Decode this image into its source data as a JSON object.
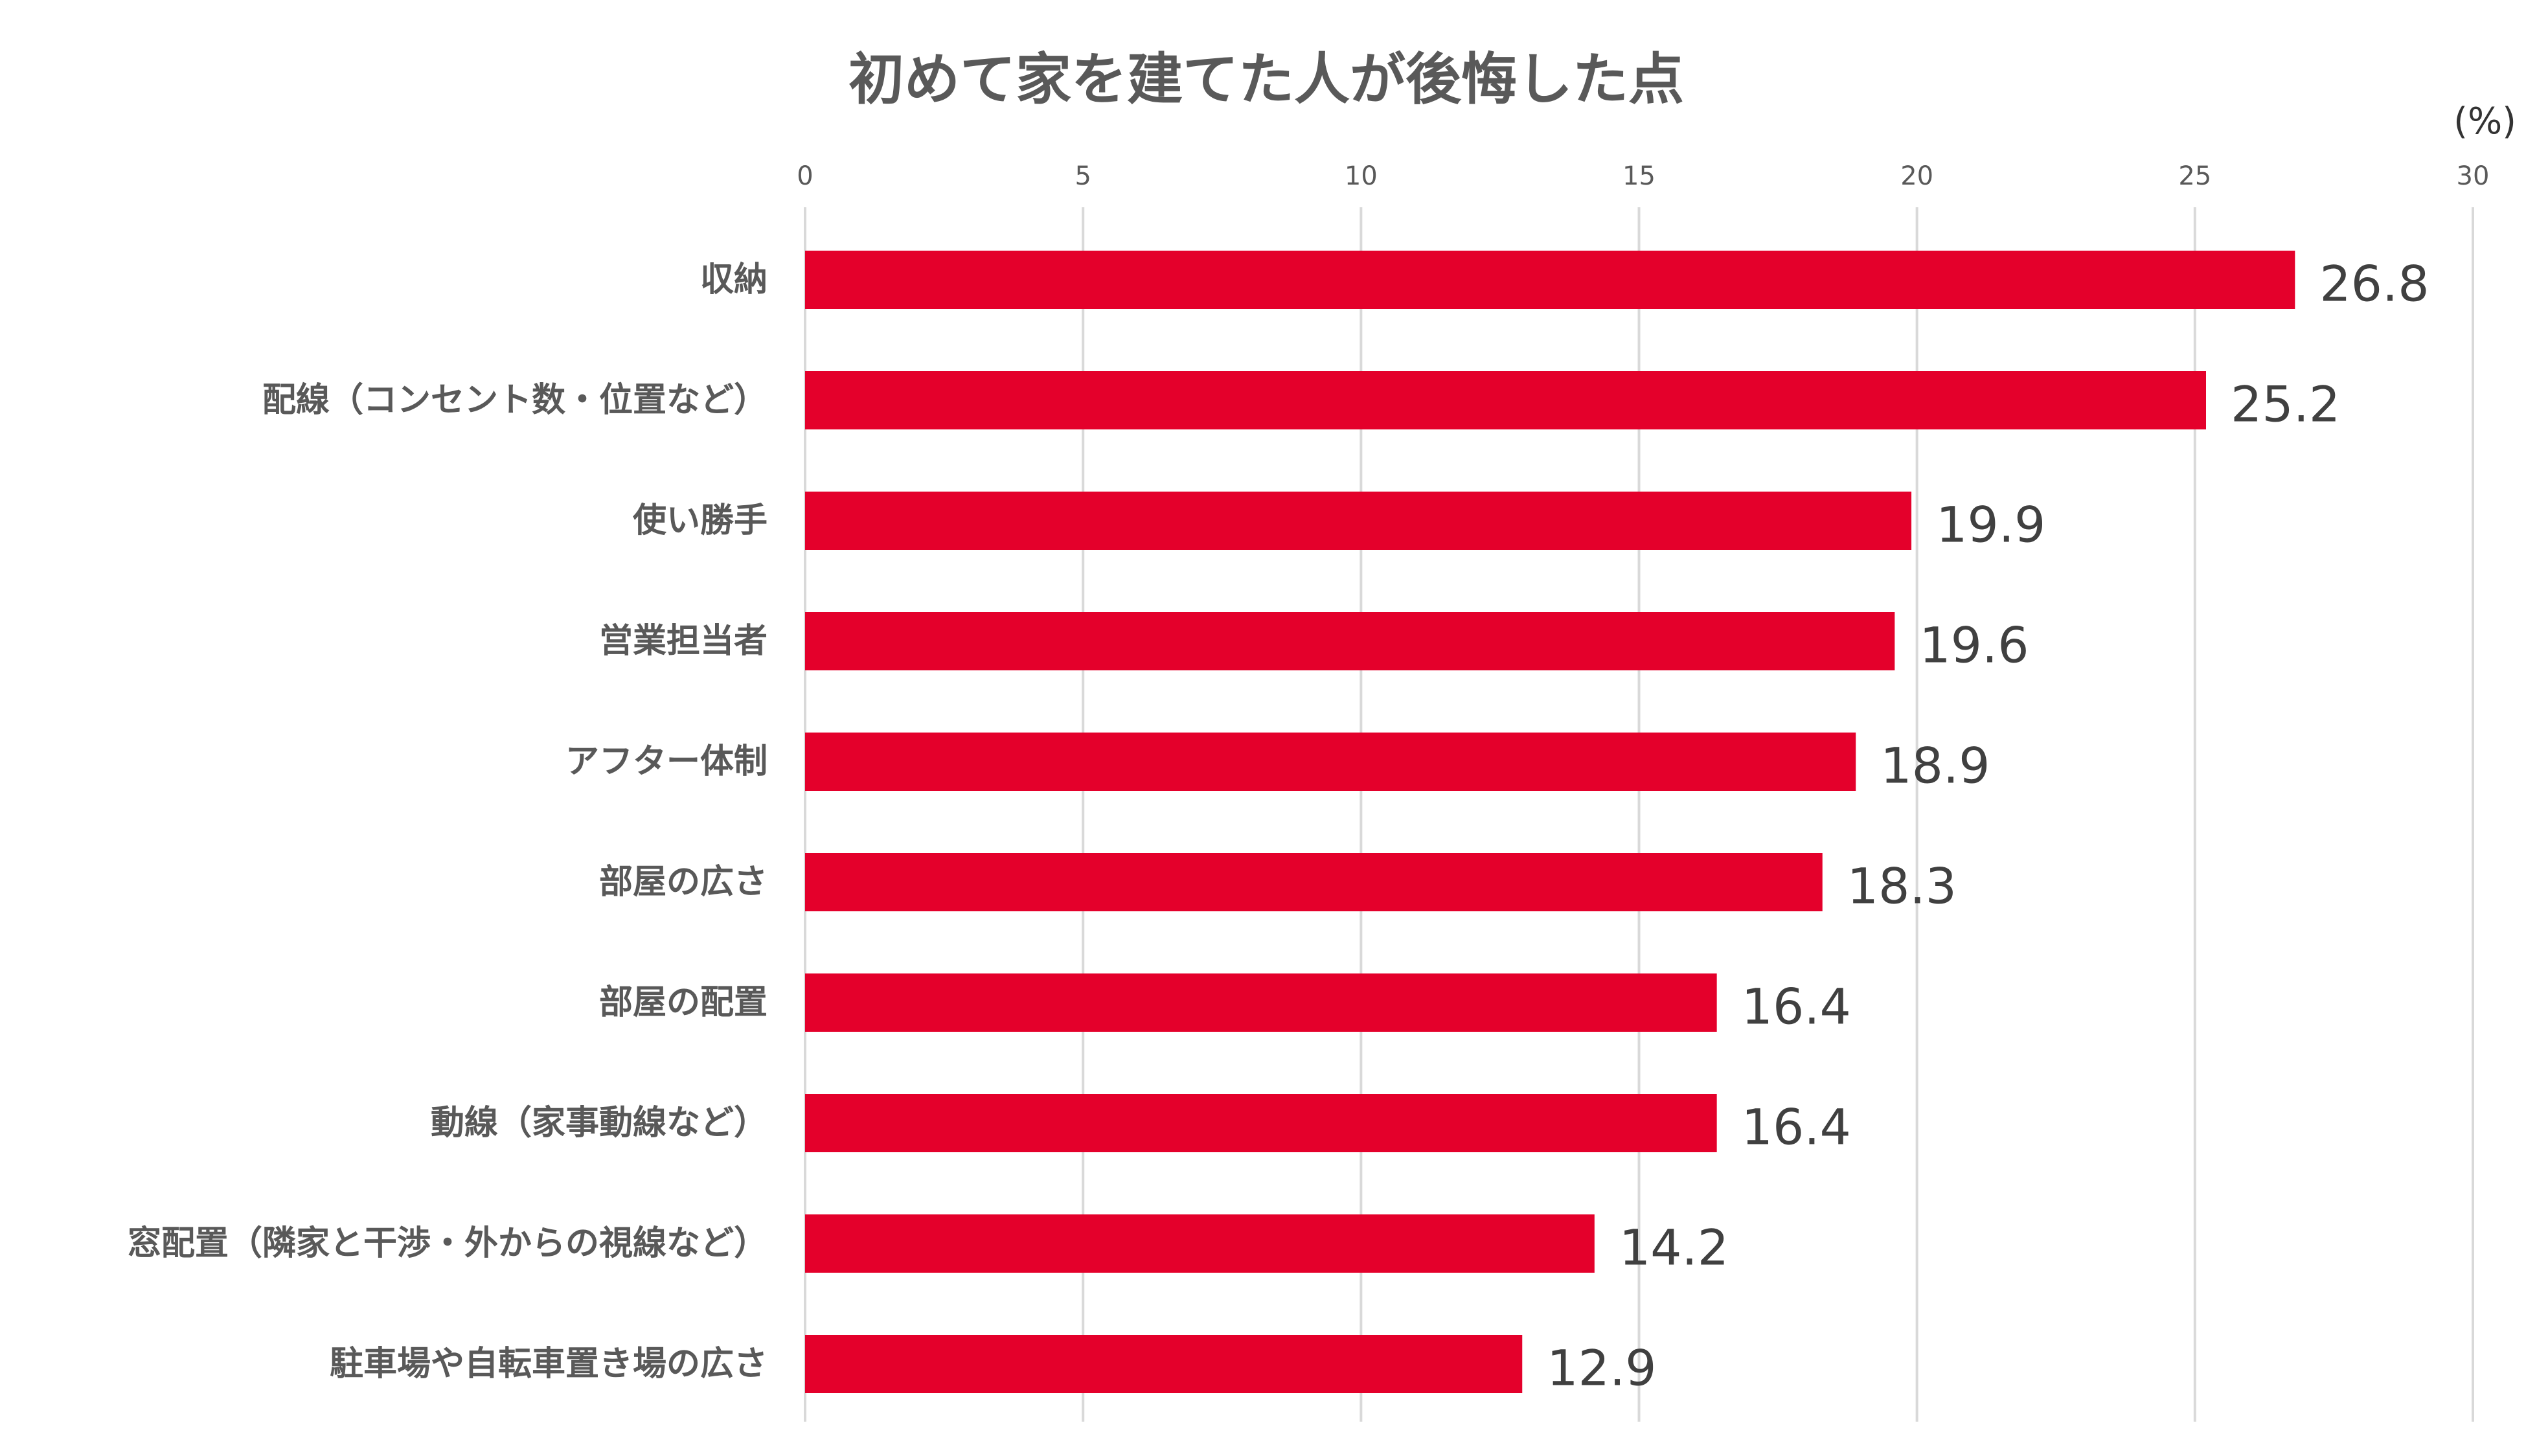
{
  "chart_data": {
    "type": "bar",
    "orientation": "horizontal",
    "title": "初めて家を建てた人が後悔した点",
    "unit": "(%)",
    "xlim": [
      0,
      30
    ],
    "x_ticks": [
      0,
      5,
      10,
      15,
      20,
      25,
      30
    ],
    "x_axis_position": "top",
    "grid": true,
    "legend": "none",
    "bar_color": "#e4002b",
    "categories": [
      "収納",
      "配線（コンセント数・位置など）",
      "使い勝手",
      "営業担当者",
      "アフター体制",
      "部屋の広さ",
      "部屋の配置",
      "動線（家事動線など）",
      "窓配置（隣家と干渉・外からの視線など）",
      "駐車場や自転車置き場の広さ"
    ],
    "values": [
      26.8,
      25.2,
      19.9,
      19.6,
      18.9,
      18.3,
      16.4,
      16.4,
      14.2,
      12.9
    ],
    "value_labels": [
      "26.8",
      "25.2",
      "19.9",
      "19.6",
      "18.9",
      "18.3",
      "16.4",
      "16.4",
      "14.2",
      "12.9"
    ]
  }
}
